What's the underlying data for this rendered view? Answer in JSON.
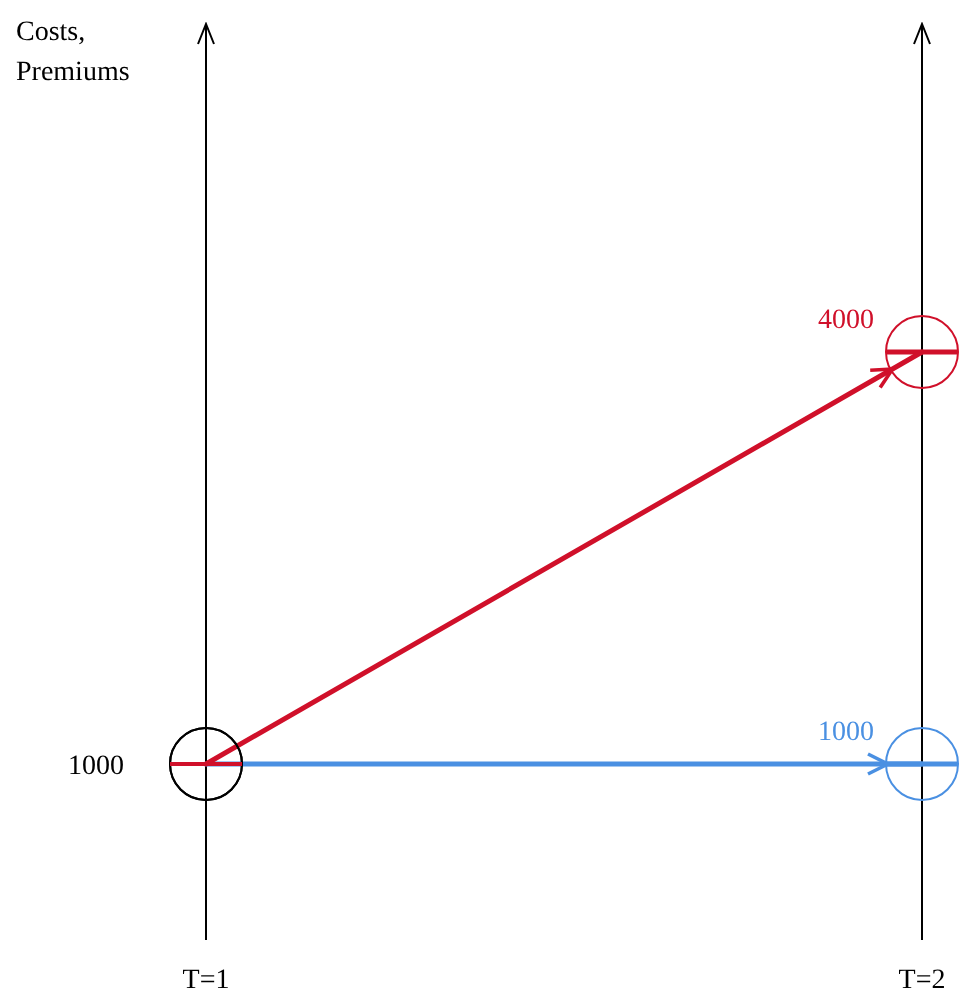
{
  "chart_data": {
    "type": "line",
    "annotations": [
      "Costs,\nPremiums"
    ],
    "categories": [
      "T=1",
      "T=2"
    ],
    "marker": "circle",
    "series": [
      {
        "color": "#4a90e2",
        "values": [
          1000,
          1000
        ],
        "value_labels": [
          "1000",
          "1000"
        ]
      },
      {
        "color": "#d0102a",
        "values": [
          1000,
          4000
        ],
        "value_labels": [
          null,
          "4000"
        ]
      }
    ]
  }
}
